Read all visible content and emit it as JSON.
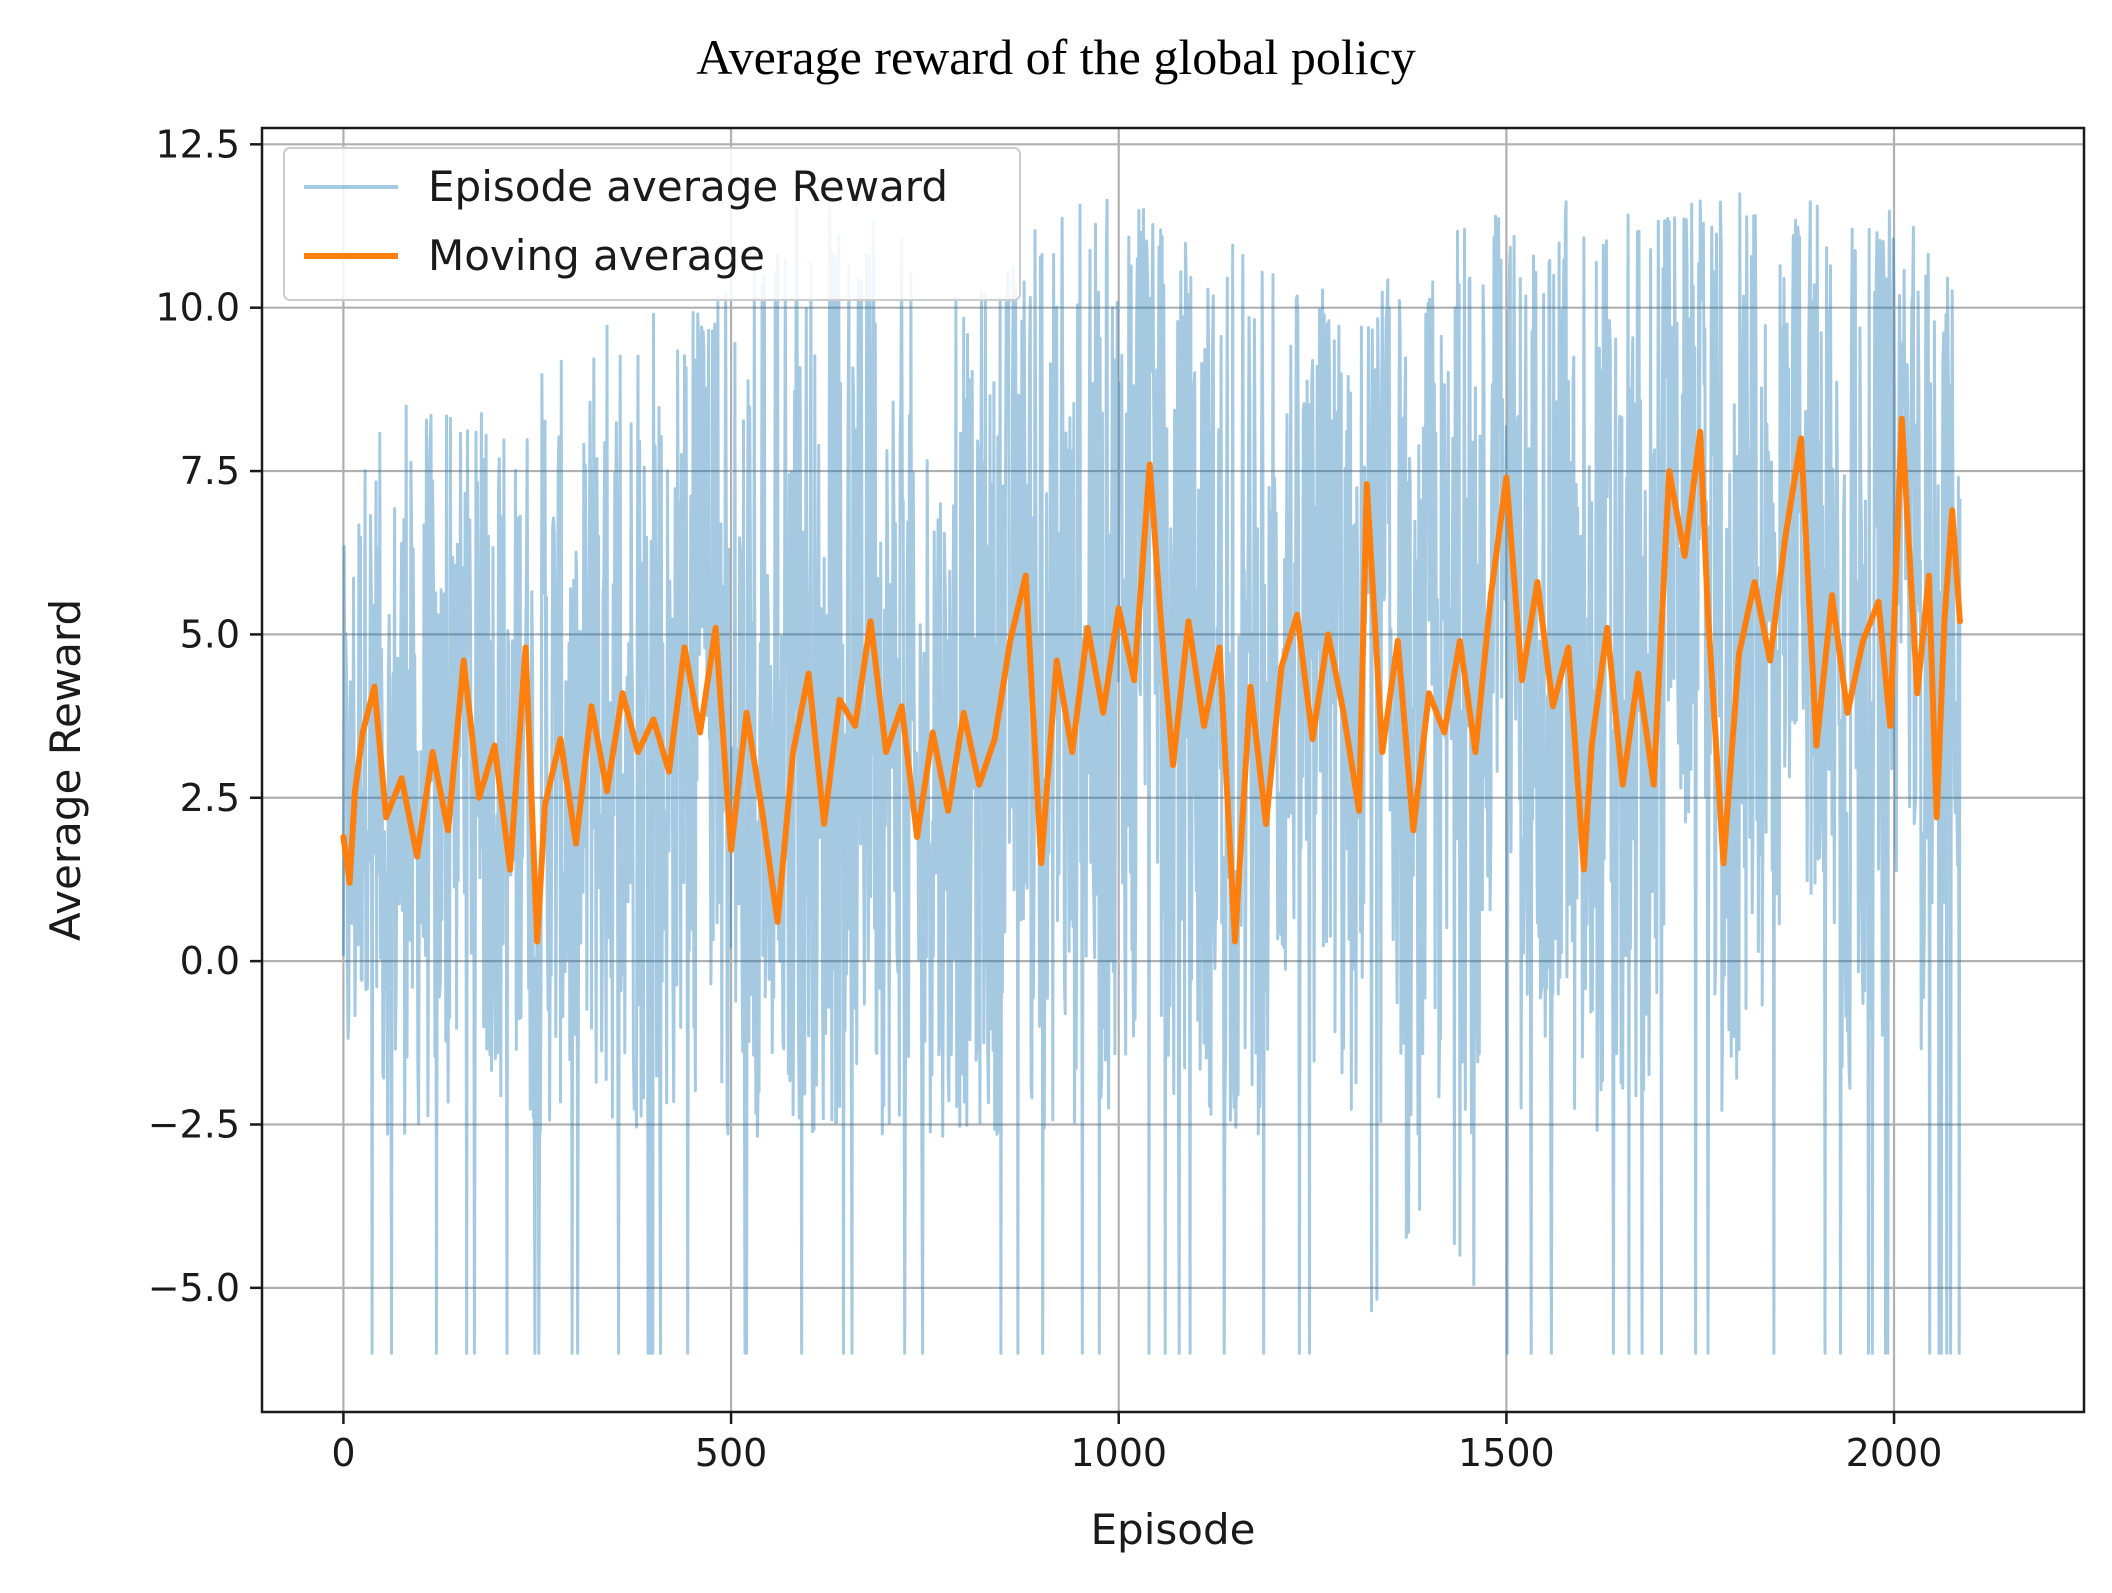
{
  "chart_data": {
    "type": "line",
    "title": "Average reward of the global policy",
    "xlabel": "Episode",
    "ylabel": "Average Reward",
    "xlim": [
      -105,
      2245
    ],
    "ylim": [
      -6.9,
      12.75
    ],
    "xticks": [
      0,
      500,
      1000,
      1500,
      2000
    ],
    "xtick_labels": [
      "0",
      "500",
      "1000",
      "1500",
      "2000"
    ],
    "yticks": [
      -5.0,
      -2.5,
      0.0,
      2.5,
      5.0,
      7.5,
      10.0,
      12.5
    ],
    "ytick_labels": [
      "−5.0",
      "−2.5",
      "0.0",
      "2.5",
      "5.0",
      "7.5",
      "10.0",
      "12.5"
    ],
    "grid": true,
    "legend_position": "top-left",
    "series": [
      {
        "name": "Episode average Reward",
        "color": "#1f77b4",
        "opacity": 0.4,
        "x_start": 0,
        "x_end": 2085,
        "samples": 2086,
        "envelope_x": [
          0,
          100,
          200,
          300,
          400,
          500,
          600,
          700,
          800,
          900,
          1000,
          1100,
          1200,
          1300,
          1400,
          1500,
          1600,
          1700,
          1800,
          1900,
          2000,
          2085
        ],
        "envelope_high": [
          8.0,
          8.8,
          8.3,
          9.8,
          10.0,
          10.5,
          11.8,
          11.5,
          11.0,
          11.4,
          11.8,
          11.3,
          10.6,
          10.7,
          10.9,
          11.7,
          11.8,
          11.9,
          11.8,
          11.7,
          11.5,
          10.6
        ],
        "envelope_low": [
          -6.0,
          -6.0,
          -6.0,
          -6.0,
          -6.0,
          -6.0,
          -6.0,
          -6.0,
          -6.0,
          -6.0,
          -6.0,
          -6.0,
          -6.0,
          -6.0,
          -3.5,
          -6.0,
          -6.0,
          -6.0,
          -6.0,
          -6.0,
          -6.0,
          -6.0
        ]
      },
      {
        "name": "Moving average",
        "color": "#ff7f0e",
        "x": [
          0,
          8,
          15,
          25,
          40,
          55,
          75,
          95,
          115,
          135,
          155,
          175,
          195,
          215,
          235,
          250,
          260,
          280,
          300,
          320,
          340,
          360,
          380,
          400,
          420,
          440,
          460,
          480,
          500,
          520,
          540,
          560,
          580,
          600,
          620,
          640,
          660,
          680,
          700,
          720,
          740,
          760,
          780,
          800,
          820,
          840,
          860,
          880,
          900,
          920,
          940,
          960,
          980,
          1000,
          1020,
          1040,
          1055,
          1070,
          1090,
          1110,
          1130,
          1150,
          1170,
          1190,
          1210,
          1230,
          1250,
          1270,
          1290,
          1310,
          1320,
          1340,
          1360,
          1380,
          1400,
          1420,
          1440,
          1460,
          1480,
          1500,
          1520,
          1540,
          1560,
          1580,
          1600,
          1610,
          1630,
          1650,
          1670,
          1690,
          1710,
          1730,
          1750,
          1760,
          1780,
          1800,
          1820,
          1840,
          1860,
          1880,
          1900,
          1920,
          1940,
          1960,
          1980,
          1995,
          2010,
          2030,
          2045,
          2055,
          2065,
          2075,
          2085
        ],
        "y": [
          1.9,
          1.2,
          2.6,
          3.5,
          4.2,
          2.2,
          2.8,
          1.6,
          3.2,
          2.0,
          4.6,
          2.5,
          3.3,
          1.4,
          4.8,
          0.3,
          2.4,
          3.4,
          1.8,
          3.9,
          2.6,
          4.1,
          3.2,
          3.7,
          2.9,
          4.8,
          3.5,
          5.1,
          1.7,
          3.8,
          2.3,
          0.6,
          3.2,
          4.4,
          2.1,
          4.0,
          3.6,
          5.2,
          3.2,
          3.9,
          1.9,
          3.5,
          2.3,
          3.8,
          2.7,
          3.4,
          4.9,
          5.9,
          1.5,
          4.6,
          3.2,
          5.1,
          3.8,
          5.4,
          4.3,
          7.6,
          5.1,
          3.0,
          5.2,
          3.6,
          4.8,
          0.3,
          4.2,
          2.1,
          4.5,
          5.3,
          3.4,
          5.0,
          3.8,
          2.3,
          7.3,
          3.2,
          4.9,
          2.0,
          4.1,
          3.5,
          4.9,
          3.2,
          5.6,
          7.4,
          4.3,
          5.8,
          3.9,
          4.8,
          1.4,
          3.3,
          5.1,
          2.7,
          4.4,
          2.7,
          7.5,
          6.2,
          8.1,
          5.3,
          1.5,
          4.7,
          5.8,
          4.6,
          6.5,
          8.0,
          3.3,
          5.6,
          3.8,
          4.9,
          5.5,
          3.6,
          8.3,
          4.1,
          5.9,
          2.2,
          5.2,
          6.9,
          5.2
        ]
      }
    ]
  }
}
